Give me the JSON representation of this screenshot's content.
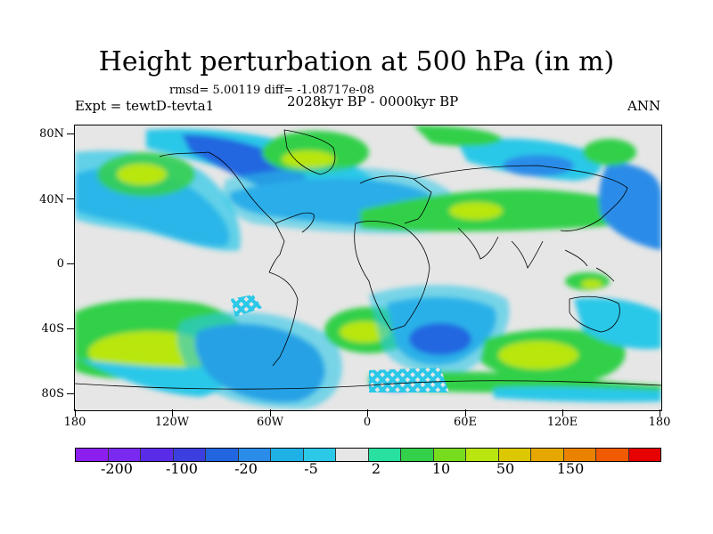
{
  "title": "Height perturbation at 500 hPa (in m)",
  "stats": "rmsd= 5.00119 diff= -1.08717e-08",
  "experiment": "Expt = tewtD-tevta1",
  "period": "2028kyr BP - 0000kyr BP",
  "season": "ANN",
  "lat_labels": [
    "80N",
    "40N",
    "0",
    "40S",
    "80S"
  ],
  "lon_labels": [
    "180",
    "120W",
    "60W",
    "0",
    "60E",
    "120E",
    "180"
  ],
  "colorbar": {
    "colors": [
      "#8c1ef0",
      "#7a2af0",
      "#5a2be8",
      "#3b3fe0",
      "#2166e0",
      "#2a8ce8",
      "#1fb0e6",
      "#2bc8e8",
      "#e6e6e6",
      "#28e0a0",
      "#33d04a",
      "#77dc1e",
      "#b8e60e",
      "#dcc800",
      "#e6a800",
      "#ea8200",
      "#f05a00",
      "#e60000"
    ],
    "labels": [
      "-200",
      "-100",
      "-20",
      "-5",
      "2",
      "10",
      "50",
      "150"
    ]
  }
}
